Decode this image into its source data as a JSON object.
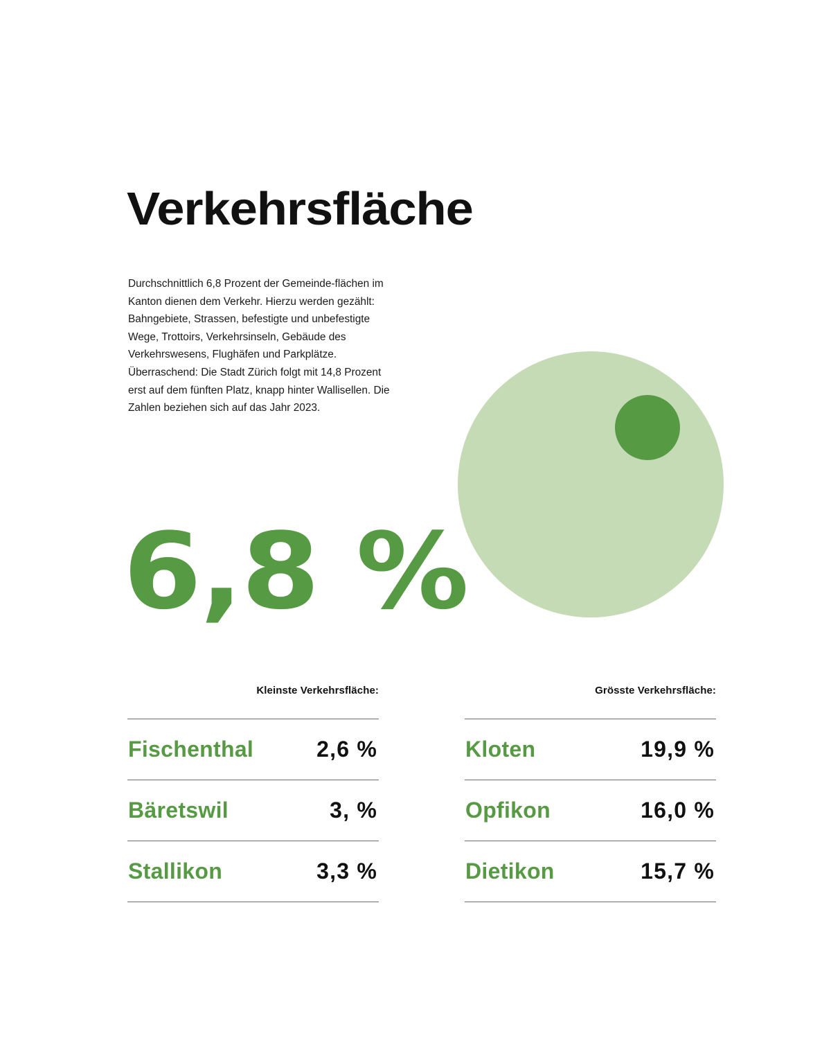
{
  "page": {
    "title": "Verkehrsfläche",
    "intro": "Durchschnittlich 6,8 Prozent der Gemeinde-flächen im Kanton dienen dem Verkehr. Hierzu werden gezählt: Bahngebiete, Strassen, befestigte und unbefestigte Wege, Trottoirs, Verkehrsinseln, Gebäude des Verkehrswesens, Flughäfen und Parkplätze. Überraschend: Die Stadt Zürich folgt mit 14,8 Prozent erst auf dem fünften Platz, knapp hinter Wallisellen. Die Zahlen beziehen sich auf das Jahr 2023.",
    "headline_value": "6,8 %"
  },
  "visual": {
    "total_color": "#c5dbb5",
    "part_color": "#579a44",
    "share_percent": 6.8
  },
  "tables": {
    "smallest": {
      "heading": "Kleinste Verkehrsfläche:",
      "rows": [
        {
          "name": "Fischenthal",
          "value": "2,6 %"
        },
        {
          "name": "Bäretswil",
          "value": "3, %"
        },
        {
          "name": "Stallikon",
          "value": "3,3 %"
        }
      ]
    },
    "largest": {
      "heading": "Grösste Verkehrsfläche:",
      "rows": [
        {
          "name": "Kloten",
          "value": "19,9 %"
        },
        {
          "name": "Opfikon",
          "value": "16,0 %"
        },
        {
          "name": "Dietikon",
          "value": "15,7 %"
        }
      ]
    }
  },
  "colors": {
    "accent": "#579a44",
    "accent_light": "#c5dbb5",
    "text": "#111111",
    "rule": "#6a6a6a"
  }
}
